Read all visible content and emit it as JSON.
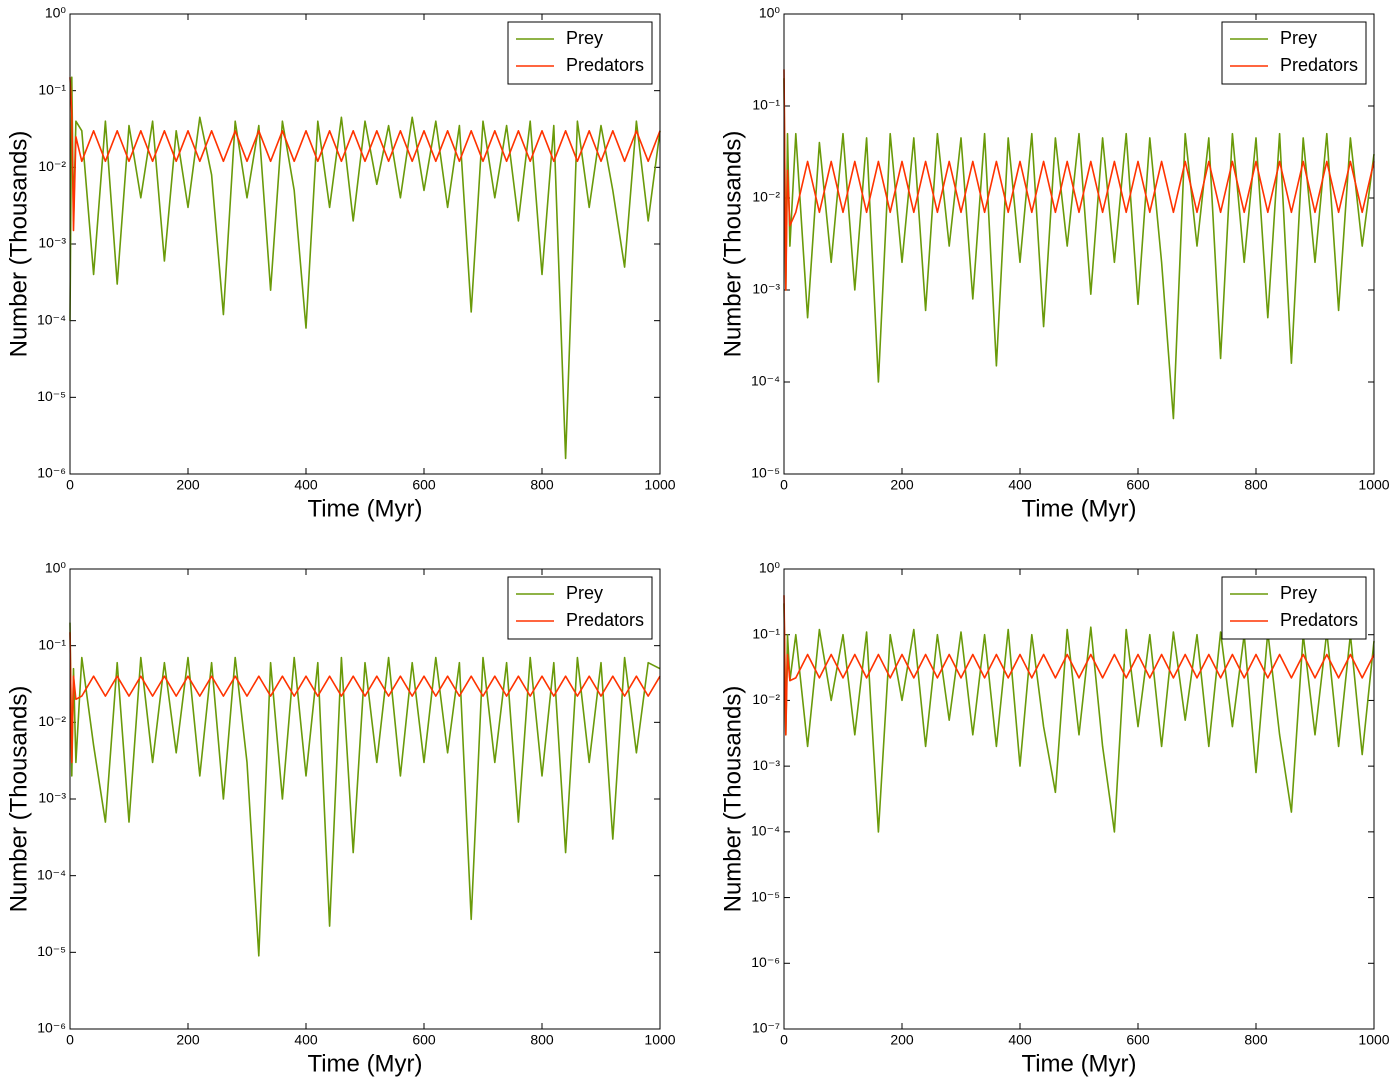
{
  "chart_data": [
    {
      "type": "line",
      "xlabel": "Time (Myr)",
      "ylabel": "Number (Thousands)",
      "yscale": "log",
      "legend": "upper right",
      "xlim": [
        0,
        1000
      ],
      "xticks": [
        0,
        200,
        400,
        600,
        800,
        1000
      ],
      "ylim": [
        1e-06,
        1
      ],
      "yticks": [
        {
          "value": 1e-06,
          "label": "10⁻⁶"
        },
        {
          "value": 1e-05,
          "label": "10⁻⁵"
        },
        {
          "value": 0.0001,
          "label": "10⁻⁴"
        },
        {
          "value": 0.001,
          "label": "10⁻³"
        },
        {
          "value": 0.01,
          "label": "10⁻²"
        },
        {
          "value": 0.1,
          "label": "10⁻¹"
        },
        {
          "value": 1,
          "label": "10⁰"
        }
      ],
      "x": [
        0,
        3,
        6,
        10,
        20,
        40,
        60,
        80,
        100,
        120,
        140,
        160,
        180,
        200,
        220,
        240,
        260,
        280,
        300,
        320,
        340,
        360,
        380,
        400,
        420,
        440,
        460,
        480,
        500,
        520,
        540,
        560,
        580,
        600,
        620,
        640,
        660,
        680,
        700,
        720,
        740,
        760,
        780,
        800,
        820,
        840,
        860,
        880,
        900,
        920,
        940,
        960,
        980,
        1000
      ],
      "series": [
        {
          "name": "Prey",
          "color": "#6a9a0a",
          "values": [
            0.0001,
            0.15,
            0.002,
            0.04,
            0.03,
            0.0004,
            0.04,
            0.0003,
            0.035,
            0.004,
            0.04,
            0.0006,
            0.03,
            0.003,
            0.045,
            0.008,
            0.00012,
            0.04,
            0.004,
            0.035,
            0.00025,
            0.04,
            0.005,
            8e-05,
            0.04,
            0.003,
            0.045,
            0.002,
            0.04,
            0.006,
            0.035,
            0.004,
            0.045,
            0.005,
            0.04,
            0.003,
            0.035,
            0.00013,
            0.04,
            0.004,
            0.035,
            0.002,
            0.04,
            0.0004,
            0.035,
            1.6e-06,
            0.04,
            0.003,
            0.035,
            0.005,
            0.0005,
            0.04,
            0.002,
            0.03
          ]
        },
        {
          "name": "Predators",
          "color": "#ff3300",
          "values": [
            0.15,
            0.05,
            0.0015,
            0.025,
            0.012,
            0.03,
            0.012,
            0.03,
            0.012,
            0.03,
            0.012,
            0.03,
            0.012,
            0.03,
            0.012,
            0.03,
            0.012,
            0.03,
            0.012,
            0.03,
            0.012,
            0.03,
            0.012,
            0.03,
            0.012,
            0.03,
            0.012,
            0.03,
            0.012,
            0.03,
            0.012,
            0.03,
            0.012,
            0.03,
            0.012,
            0.03,
            0.012,
            0.03,
            0.012,
            0.03,
            0.012,
            0.03,
            0.012,
            0.03,
            0.012,
            0.03,
            0.012,
            0.03,
            0.012,
            0.03,
            0.012,
            0.03,
            0.012,
            0.03
          ]
        }
      ]
    },
    {
      "type": "line",
      "xlabel": "Time (Myr)",
      "ylabel": "Number (Thousands)",
      "yscale": "log",
      "legend": "upper right",
      "xlim": [
        0,
        1000
      ],
      "xticks": [
        0,
        200,
        400,
        600,
        800,
        1000
      ],
      "ylim": [
        1e-05,
        1
      ],
      "yticks": [
        {
          "value": 1e-05,
          "label": "10⁻⁵"
        },
        {
          "value": 0.0001,
          "label": "10⁻⁴"
        },
        {
          "value": 0.001,
          "label": "10⁻³"
        },
        {
          "value": 0.01,
          "label": "10⁻²"
        },
        {
          "value": 0.1,
          "label": "10⁻¹"
        },
        {
          "value": 1,
          "label": "10⁰"
        }
      ],
      "x": [
        0,
        3,
        6,
        10,
        20,
        40,
        60,
        80,
        100,
        120,
        140,
        160,
        180,
        200,
        220,
        240,
        260,
        280,
        300,
        320,
        340,
        360,
        380,
        400,
        420,
        440,
        460,
        480,
        500,
        520,
        540,
        560,
        580,
        600,
        620,
        640,
        660,
        680,
        700,
        720,
        740,
        760,
        780,
        800,
        820,
        840,
        860,
        880,
        900,
        920,
        940,
        960,
        980,
        1000
      ],
      "series": [
        {
          "name": "Prey",
          "color": "#6a9a0a",
          "values": [
            0.2,
            0.001,
            0.05,
            0.003,
            0.05,
            0.0005,
            0.04,
            0.002,
            0.05,
            0.001,
            0.045,
            0.0001,
            0.05,
            0.002,
            0.045,
            0.0006,
            0.05,
            0.003,
            0.045,
            0.0008,
            0.05,
            0.00015,
            0.045,
            0.002,
            0.05,
            0.0004,
            0.045,
            0.003,
            0.05,
            0.0009,
            0.045,
            0.002,
            0.05,
            0.0007,
            0.045,
            0.002,
            4e-05,
            0.05,
            0.003,
            0.045,
            0.00018,
            0.05,
            0.002,
            0.045,
            0.0005,
            0.05,
            0.00016,
            0.045,
            0.002,
            0.05,
            0.0006,
            0.045,
            0.003,
            0.03
          ]
        },
        {
          "name": "Predators",
          "color": "#ff3300",
          "values": [
            0.25,
            0.001,
            0.02,
            0.005,
            0.007,
            0.025,
            0.007,
            0.025,
            0.007,
            0.025,
            0.007,
            0.025,
            0.007,
            0.025,
            0.007,
            0.025,
            0.007,
            0.025,
            0.007,
            0.025,
            0.007,
            0.025,
            0.007,
            0.025,
            0.007,
            0.025,
            0.007,
            0.025,
            0.007,
            0.025,
            0.007,
            0.025,
            0.007,
            0.025,
            0.007,
            0.025,
            0.007,
            0.025,
            0.007,
            0.025,
            0.007,
            0.025,
            0.007,
            0.025,
            0.007,
            0.025,
            0.007,
            0.025,
            0.007,
            0.025,
            0.007,
            0.025,
            0.007,
            0.025
          ]
        }
      ]
    },
    {
      "type": "line",
      "xlabel": "Time (Myr)",
      "ylabel": "Number (Thousands)",
      "yscale": "log",
      "legend": "upper right",
      "xlim": [
        0,
        1000
      ],
      "xticks": [
        0,
        200,
        400,
        600,
        800,
        1000
      ],
      "ylim": [
        1e-06,
        1
      ],
      "yticks": [
        {
          "value": 1e-06,
          "label": "10⁻⁶"
        },
        {
          "value": 1e-05,
          "label": "10⁻⁵"
        },
        {
          "value": 0.0001,
          "label": "10⁻⁴"
        },
        {
          "value": 0.001,
          "label": "10⁻³"
        },
        {
          "value": 0.01,
          "label": "10⁻²"
        },
        {
          "value": 0.1,
          "label": "10⁻¹"
        },
        {
          "value": 1,
          "label": "10⁰"
        }
      ],
      "x": [
        0,
        3,
        6,
        10,
        20,
        40,
        60,
        80,
        100,
        120,
        140,
        160,
        180,
        200,
        220,
        240,
        260,
        280,
        300,
        320,
        340,
        360,
        380,
        400,
        420,
        440,
        460,
        480,
        500,
        520,
        540,
        560,
        580,
        600,
        620,
        640,
        660,
        680,
        700,
        720,
        740,
        760,
        780,
        800,
        820,
        840,
        860,
        880,
        900,
        920,
        940,
        960,
        980,
        1000
      ],
      "series": [
        {
          "name": "Prey",
          "color": "#6a9a0a",
          "values": [
            0.2,
            0.002,
            0.05,
            0.003,
            0.07,
            0.005,
            0.0005,
            0.06,
            0.0005,
            0.07,
            0.003,
            0.06,
            0.004,
            0.07,
            0.002,
            0.06,
            0.001,
            0.07,
            0.003,
            9e-06,
            0.06,
            0.001,
            0.07,
            0.002,
            0.06,
            2.2e-05,
            0.07,
            0.0002,
            0.06,
            0.003,
            0.07,
            0.002,
            0.06,
            0.003,
            0.07,
            0.004,
            0.06,
            2.7e-05,
            0.07,
            0.003,
            0.06,
            0.0005,
            0.07,
            0.002,
            0.06,
            0.0002,
            0.07,
            0.003,
            0.06,
            0.0003,
            0.07,
            0.004,
            0.06,
            0.05
          ]
        },
        {
          "name": "Predators",
          "color": "#ff3300",
          "values": [
            0.15,
            0.003,
            0.04,
            0.02,
            0.022,
            0.04,
            0.022,
            0.04,
            0.022,
            0.04,
            0.022,
            0.04,
            0.022,
            0.04,
            0.022,
            0.04,
            0.022,
            0.04,
            0.022,
            0.04,
            0.022,
            0.04,
            0.022,
            0.04,
            0.022,
            0.04,
            0.022,
            0.04,
            0.022,
            0.04,
            0.022,
            0.04,
            0.022,
            0.04,
            0.022,
            0.04,
            0.022,
            0.04,
            0.022,
            0.04,
            0.022,
            0.04,
            0.022,
            0.04,
            0.022,
            0.04,
            0.022,
            0.04,
            0.022,
            0.04,
            0.022,
            0.04,
            0.022,
            0.04
          ]
        }
      ]
    },
    {
      "type": "line",
      "xlabel": "Time (Myr)",
      "ylabel": "Number (Thousands)",
      "yscale": "log",
      "legend": "upper right",
      "xlim": [
        0,
        1000
      ],
      "xticks": [
        0,
        200,
        400,
        600,
        800,
        1000
      ],
      "ylim": [
        1e-07,
        1
      ],
      "yticks": [
        {
          "value": 1e-07,
          "label": "10⁻⁷"
        },
        {
          "value": 1e-06,
          "label": "10⁻⁶"
        },
        {
          "value": 1e-05,
          "label": "10⁻⁵"
        },
        {
          "value": 0.0001,
          "label": "10⁻⁴"
        },
        {
          "value": 0.001,
          "label": "10⁻³"
        },
        {
          "value": 0.01,
          "label": "10⁻²"
        },
        {
          "value": 0.1,
          "label": "10⁻¹"
        },
        {
          "value": 1,
          "label": "10⁰"
        }
      ],
      "x": [
        0,
        3,
        6,
        10,
        20,
        40,
        60,
        80,
        100,
        120,
        140,
        160,
        180,
        200,
        220,
        240,
        260,
        280,
        300,
        320,
        340,
        360,
        380,
        400,
        420,
        440,
        460,
        480,
        500,
        520,
        540,
        560,
        580,
        600,
        620,
        640,
        660,
        680,
        700,
        720,
        740,
        760,
        780,
        800,
        820,
        840,
        860,
        880,
        900,
        920,
        940,
        960,
        980,
        1000
      ],
      "series": [
        {
          "name": "Prey",
          "color": "#6a9a0a",
          "values": [
            0.3,
            0.003,
            0.1,
            0.02,
            0.1,
            0.002,
            0.12,
            0.01,
            0.1,
            0.003,
            0.11,
            0.0001,
            0.1,
            0.01,
            0.12,
            0.002,
            0.1,
            0.005,
            0.11,
            0.003,
            0.1,
            0.002,
            0.12,
            0.001,
            0.1,
            0.004,
            0.0004,
            0.12,
            0.003,
            0.13,
            0.002,
            0.0001,
            0.12,
            0.004,
            0.1,
            0.002,
            0.11,
            0.005,
            0.1,
            0.002,
            0.11,
            0.004,
            0.1,
            0.0008,
            0.11,
            0.003,
            0.0002,
            0.1,
            0.003,
            0.11,
            0.002,
            0.1,
            0.0015,
            0.08
          ]
        },
        {
          "name": "Predators",
          "color": "#ff3300",
          "values": [
            0.4,
            0.003,
            0.05,
            0.02,
            0.022,
            0.05,
            0.022,
            0.05,
            0.022,
            0.05,
            0.022,
            0.05,
            0.022,
            0.05,
            0.022,
            0.05,
            0.022,
            0.05,
            0.022,
            0.05,
            0.022,
            0.05,
            0.022,
            0.05,
            0.022,
            0.05,
            0.022,
            0.05,
            0.022,
            0.05,
            0.022,
            0.05,
            0.022,
            0.05,
            0.022,
            0.05,
            0.022,
            0.05,
            0.022,
            0.05,
            0.022,
            0.05,
            0.022,
            0.05,
            0.022,
            0.05,
            0.022,
            0.05,
            0.022,
            0.05,
            0.022,
            0.05,
            0.022,
            0.05
          ]
        }
      ]
    }
  ]
}
